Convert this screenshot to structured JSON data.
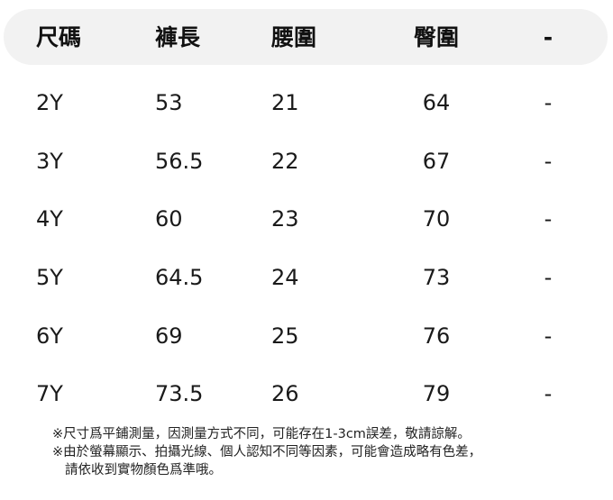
{
  "table": {
    "headers": [
      "尺碼",
      "褲長",
      "腰圍",
      "臀圍",
      "-"
    ],
    "rows": [
      [
        "2Y",
        "53",
        "21",
        "64",
        "-"
      ],
      [
        "3Y",
        "56.5",
        "22",
        "67",
        "-"
      ],
      [
        "4Y",
        "60",
        "23",
        "70",
        "-"
      ],
      [
        "5Y",
        "64.5",
        "24",
        "73",
        "-"
      ],
      [
        "6Y",
        "69",
        "25",
        "76",
        "-"
      ],
      [
        "7Y",
        "73.5",
        "26",
        "79",
        "-"
      ]
    ]
  },
  "notes": [
    "※尺寸爲平鋪測量，因測量方式不同，可能存在1-3cm誤差，敬請諒解。",
    "※由於螢幕顯示、拍攝光線、個人認知不同等因素，可能會造成略有色差，",
    "請依收到實物顏色爲準哦。"
  ]
}
